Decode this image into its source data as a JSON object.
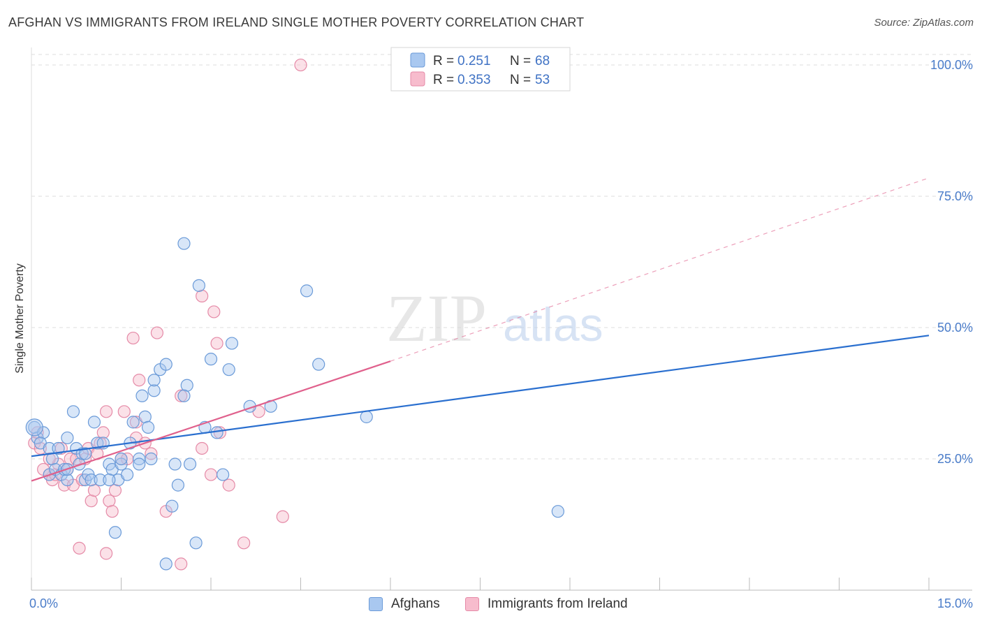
{
  "title": "AFGHAN VS IMMIGRANTS FROM IRELAND SINGLE MOTHER POVERTY CORRELATION CHART",
  "source": "Source: ZipAtlas.com",
  "watermark": {
    "zip": "ZIP",
    "atlas": "atlas"
  },
  "colors": {
    "afghans_fill": "#a9c8f0",
    "afghans_stroke": "#6a9ad8",
    "afghans_line": "#2a6fcf",
    "ireland_fill": "#f7bccd",
    "ireland_stroke": "#e58aa7",
    "ireland_line": "#e0608c",
    "tick_text": "#4a7cc9",
    "grid": "#dddddd"
  },
  "legend": {
    "r_label": "R =",
    "n_label": "N =",
    "rows": [
      {
        "r": "0.251",
        "n": "68"
      },
      {
        "r": "0.353",
        "n": "53"
      }
    ]
  },
  "chart_data": {
    "type": "scatter",
    "title": "AFGHAN VS IMMIGRANTS FROM IRELAND SINGLE MOTHER POVERTY CORRELATION CHART",
    "xlabel": "",
    "ylabel": "Single Mother Poverty",
    "xlim": [
      0,
      15
    ],
    "ylim": [
      0,
      102
    ],
    "x_tick_labels": [
      "0.0%",
      "15.0%"
    ],
    "y_ticks": [
      25,
      50,
      75,
      100
    ],
    "y_tick_labels": [
      "25.0%",
      "50.0%",
      "75.0%",
      "100.0%"
    ],
    "grid": true,
    "legend_position": "top-center",
    "series": [
      {
        "name": "Afghans",
        "r": 0.251,
        "n": 68,
        "trend": {
          "x": [
            0,
            15
          ],
          "y": [
            25.5,
            48.5
          ],
          "dashed_extension": false
        },
        "points": [
          [
            0.05,
            31
          ],
          [
            0.1,
            29
          ],
          [
            0.2,
            30
          ],
          [
            0.15,
            28
          ],
          [
            0.3,
            27
          ],
          [
            0.35,
            25
          ],
          [
            0.3,
            22
          ],
          [
            0.4,
            23
          ],
          [
            0.5,
            22
          ],
          [
            0.6,
            21
          ],
          [
            0.55,
            23
          ],
          [
            0.6,
            29
          ],
          [
            0.7,
            34
          ],
          [
            0.75,
            27
          ],
          [
            0.8,
            24
          ],
          [
            0.85,
            26
          ],
          [
            0.9,
            21
          ],
          [
            0.95,
            22
          ],
          [
            1.0,
            21
          ],
          [
            1.05,
            32
          ],
          [
            1.1,
            28
          ],
          [
            1.15,
            21
          ],
          [
            1.2,
            28
          ],
          [
            1.3,
            24
          ],
          [
            1.35,
            23
          ],
          [
            1.4,
            11
          ],
          [
            1.45,
            21
          ],
          [
            1.5,
            24
          ],
          [
            1.5,
            25
          ],
          [
            1.6,
            22
          ],
          [
            1.65,
            28
          ],
          [
            1.7,
            32
          ],
          [
            1.8,
            25
          ],
          [
            1.85,
            37
          ],
          [
            1.9,
            33
          ],
          [
            1.95,
            31
          ],
          [
            2.0,
            25
          ],
          [
            2.05,
            38
          ],
          [
            2.05,
            40
          ],
          [
            2.15,
            42
          ],
          [
            2.25,
            43
          ],
          [
            2.25,
            5
          ],
          [
            2.35,
            16
          ],
          [
            2.4,
            24
          ],
          [
            2.45,
            20
          ],
          [
            2.55,
            66
          ],
          [
            2.6,
            39
          ],
          [
            2.65,
            24
          ],
          [
            2.75,
            9
          ],
          [
            2.8,
            58
          ],
          [
            2.9,
            31
          ],
          [
            3.0,
            44
          ],
          [
            3.1,
            30
          ],
          [
            3.2,
            22
          ],
          [
            3.3,
            42
          ],
          [
            3.35,
            47
          ],
          [
            3.65,
            35
          ],
          [
            4.0,
            35
          ],
          [
            4.6,
            57
          ],
          [
            4.8,
            43
          ],
          [
            5.6,
            33
          ],
          [
            8.8,
            15
          ],
          [
            0.6,
            23
          ],
          [
            2.55,
            37
          ],
          [
            0.9,
            26
          ],
          [
            1.3,
            21
          ],
          [
            0.45,
            27
          ],
          [
            1.8,
            24
          ]
        ]
      },
      {
        "name": "Immigrants from Ireland",
        "r": 0.353,
        "n": 53,
        "trend": {
          "x": [
            0,
            6
          ],
          "y": [
            20.8,
            43.6
          ],
          "dashed_to": [
            15,
            78.5
          ]
        },
        "points": [
          [
            0.05,
            28
          ],
          [
            0.1,
            30
          ],
          [
            0.15,
            27
          ],
          [
            0.2,
            23
          ],
          [
            0.3,
            22
          ],
          [
            0.35,
            21
          ],
          [
            0.4,
            22
          ],
          [
            0.45,
            24
          ],
          [
            0.5,
            27
          ],
          [
            0.55,
            20
          ],
          [
            0.6,
            23
          ],
          [
            0.65,
            25
          ],
          [
            0.7,
            20
          ],
          [
            0.75,
            25
          ],
          [
            0.8,
            8
          ],
          [
            0.85,
            21
          ],
          [
            0.9,
            25
          ],
          [
            0.95,
            27
          ],
          [
            1.0,
            17
          ],
          [
            1.05,
            19
          ],
          [
            1.1,
            26
          ],
          [
            1.15,
            28
          ],
          [
            1.2,
            30
          ],
          [
            1.25,
            7
          ],
          [
            1.3,
            17
          ],
          [
            1.35,
            15
          ],
          [
            1.4,
            19
          ],
          [
            1.5,
            25
          ],
          [
            1.55,
            34
          ],
          [
            1.6,
            25
          ],
          [
            1.7,
            48
          ],
          [
            1.75,
            29
          ],
          [
            1.8,
            40
          ],
          [
            1.9,
            28
          ],
          [
            2.0,
            26
          ],
          [
            2.1,
            49
          ],
          [
            2.25,
            15
          ],
          [
            2.5,
            37
          ],
          [
            2.5,
            5
          ],
          [
            2.85,
            56
          ],
          [
            2.85,
            27
          ],
          [
            3.0,
            22
          ],
          [
            3.05,
            53
          ],
          [
            3.1,
            47
          ],
          [
            3.15,
            30
          ],
          [
            3.3,
            20
          ],
          [
            3.55,
            9
          ],
          [
            3.8,
            34
          ],
          [
            4.2,
            14
          ],
          [
            4.5,
            100
          ],
          [
            1.25,
            34
          ],
          [
            0.3,
            25
          ],
          [
            1.75,
            32
          ]
        ]
      }
    ]
  }
}
